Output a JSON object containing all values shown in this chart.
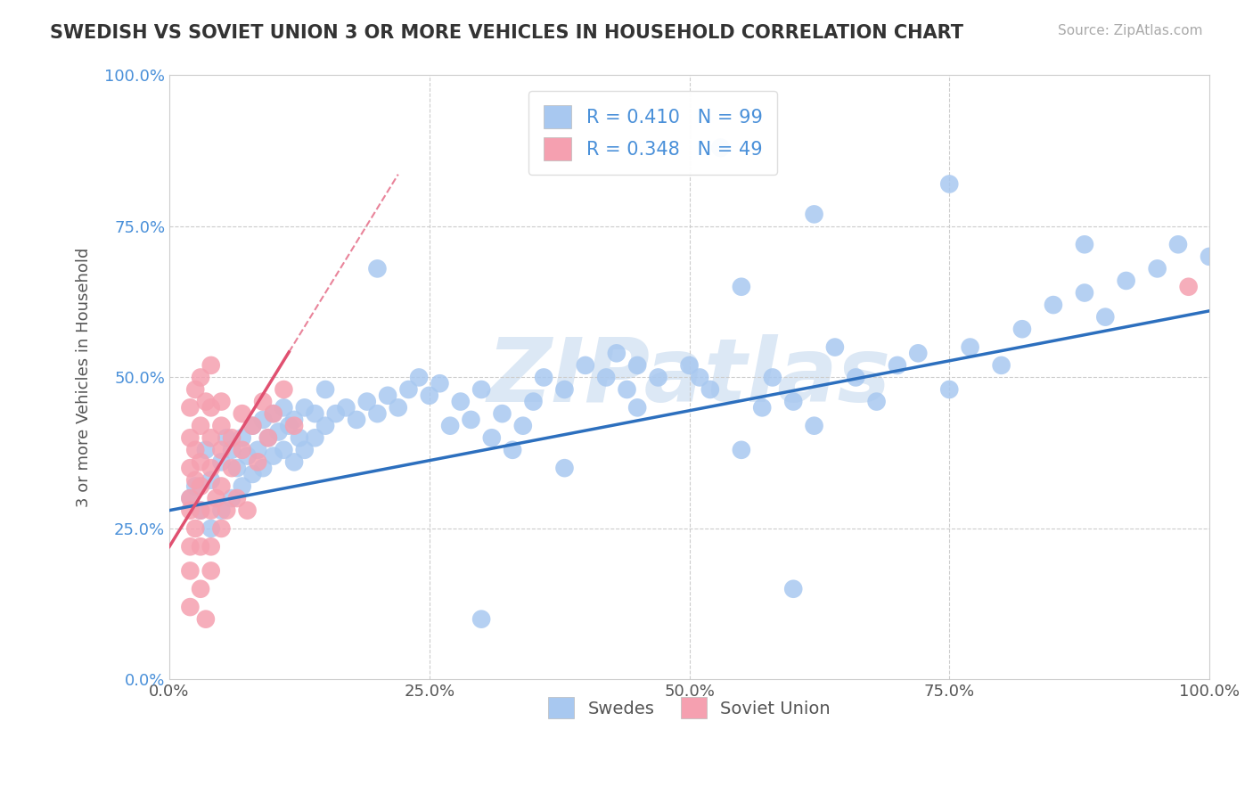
{
  "title": "SWEDISH VS SOVIET UNION 3 OR MORE VEHICLES IN HOUSEHOLD CORRELATION CHART",
  "source_text": "Source: ZipAtlas.com",
  "ylabel": "3 or more Vehicles in Household",
  "blue_label": "Swedes",
  "pink_label": "Soviet Union",
  "blue_R": 0.41,
  "blue_N": 99,
  "pink_R": 0.348,
  "pink_N": 49,
  "blue_color": "#a8c8f0",
  "blue_line_color": "#2c6fbe",
  "pink_color": "#f5a0b0",
  "pink_line_color": "#e05070",
  "background_color": "#ffffff",
  "watermark": "ZIPatlas",
  "watermark_color": "#dce8f5",
  "xlim": [
    0.0,
    1.0
  ],
  "ylim": [
    0.0,
    1.0
  ],
  "xticks": [
    0.0,
    0.25,
    0.5,
    0.75,
    1.0
  ],
  "yticks": [
    0.0,
    0.25,
    0.5,
    0.75,
    1.0
  ],
  "xticklabels": [
    "0.0%",
    "25.0%",
    "50.0%",
    "75.0%",
    "100.0%"
  ],
  "yticklabels": [
    "0.0%",
    "25.0%",
    "50.0%",
    "75.0%",
    "100.0%"
  ],
  "blue_slope": 0.33,
  "blue_intercept": 0.28,
  "pink_slope": 2.8,
  "pink_intercept": 0.22,
  "blue_points_x": [
    0.02,
    0.025,
    0.03,
    0.035,
    0.04,
    0.04,
    0.05,
    0.05,
    0.055,
    0.06,
    0.06,
    0.065,
    0.07,
    0.07,
    0.075,
    0.08,
    0.08,
    0.085,
    0.09,
    0.09,
    0.095,
    0.1,
    0.1,
    0.105,
    0.11,
    0.11,
    0.115,
    0.12,
    0.12,
    0.125,
    0.13,
    0.13,
    0.14,
    0.14,
    0.15,
    0.15,
    0.16,
    0.17,
    0.18,
    0.19,
    0.2,
    0.21,
    0.22,
    0.23,
    0.24,
    0.25,
    0.26,
    0.27,
    0.28,
    0.29,
    0.3,
    0.31,
    0.32,
    0.33,
    0.34,
    0.35,
    0.36,
    0.38,
    0.4,
    0.42,
    0.43,
    0.44,
    0.45,
    0.47,
    0.5,
    0.52,
    0.53,
    0.55,
    0.57,
    0.58,
    0.6,
    0.62,
    0.64,
    0.66,
    0.68,
    0.7,
    0.72,
    0.75,
    0.77,
    0.8,
    0.82,
    0.85,
    0.88,
    0.9,
    0.92,
    0.95,
    0.97,
    1.0,
    0.53,
    0.55,
    0.62,
    0.75,
    0.88,
    0.6,
    0.3,
    0.2,
    0.51,
    0.45,
    0.38
  ],
  "blue_points_y": [
    0.3,
    0.32,
    0.28,
    0.38,
    0.25,
    0.33,
    0.28,
    0.36,
    0.4,
    0.3,
    0.38,
    0.35,
    0.32,
    0.4,
    0.37,
    0.34,
    0.42,
    0.38,
    0.35,
    0.43,
    0.4,
    0.37,
    0.44,
    0.41,
    0.38,
    0.45,
    0.42,
    0.36,
    0.43,
    0.4,
    0.38,
    0.45,
    0.4,
    0.44,
    0.42,
    0.48,
    0.44,
    0.45,
    0.43,
    0.46,
    0.44,
    0.47,
    0.45,
    0.48,
    0.5,
    0.47,
    0.49,
    0.42,
    0.46,
    0.43,
    0.48,
    0.4,
    0.44,
    0.38,
    0.42,
    0.46,
    0.5,
    0.48,
    0.52,
    0.5,
    0.54,
    0.48,
    0.52,
    0.5,
    0.52,
    0.48,
    0.88,
    0.38,
    0.45,
    0.5,
    0.46,
    0.42,
    0.55,
    0.5,
    0.46,
    0.52,
    0.54,
    0.48,
    0.55,
    0.52,
    0.58,
    0.62,
    0.64,
    0.6,
    0.66,
    0.68,
    0.72,
    0.7,
    0.88,
    0.65,
    0.77,
    0.82,
    0.72,
    0.15,
    0.1,
    0.68,
    0.5,
    0.45,
    0.35
  ],
  "pink_points_x": [
    0.02,
    0.02,
    0.02,
    0.02,
    0.02,
    0.02,
    0.02,
    0.02,
    0.025,
    0.025,
    0.025,
    0.025,
    0.03,
    0.03,
    0.03,
    0.03,
    0.03,
    0.03,
    0.03,
    0.035,
    0.035,
    0.04,
    0.04,
    0.04,
    0.04,
    0.04,
    0.04,
    0.04,
    0.045,
    0.05,
    0.05,
    0.05,
    0.05,
    0.05,
    0.055,
    0.06,
    0.06,
    0.065,
    0.07,
    0.07,
    0.075,
    0.08,
    0.085,
    0.09,
    0.095,
    0.1,
    0.11,
    0.12,
    0.98
  ],
  "pink_points_y": [
    0.3,
    0.35,
    0.28,
    0.22,
    0.4,
    0.18,
    0.45,
    0.12,
    0.33,
    0.38,
    0.25,
    0.48,
    0.32,
    0.28,
    0.42,
    0.22,
    0.36,
    0.15,
    0.5,
    0.46,
    0.1,
    0.35,
    0.4,
    0.28,
    0.45,
    0.22,
    0.52,
    0.18,
    0.3,
    0.38,
    0.32,
    0.42,
    0.25,
    0.46,
    0.28,
    0.4,
    0.35,
    0.3,
    0.44,
    0.38,
    0.28,
    0.42,
    0.36,
    0.46,
    0.4,
    0.44,
    0.48,
    0.42,
    0.65
  ]
}
